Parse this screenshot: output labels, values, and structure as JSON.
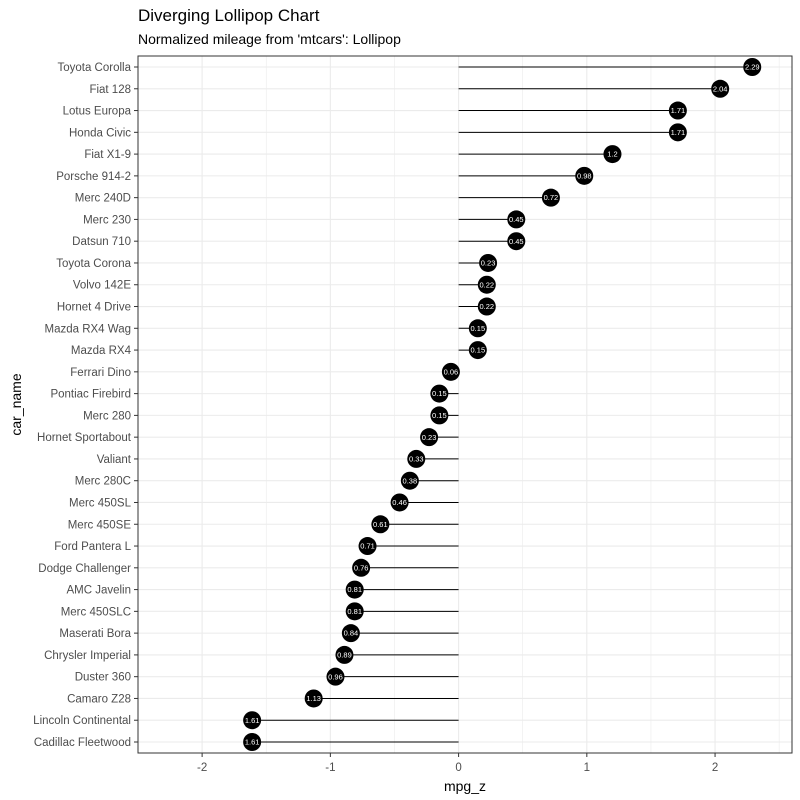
{
  "chart_data": {
    "type": "lollipop",
    "title": "Diverging Lollipop Chart",
    "subtitle": "Normalized mileage from 'mtcars': Lollipop",
    "xlabel": "mpg_z",
    "ylabel": "car_name",
    "xlim": [
      -2.5,
      2.6
    ],
    "x_ticks": [
      -2,
      -1,
      0,
      1,
      2
    ],
    "grid": true,
    "categories": [
      "Toyota Corolla",
      "Fiat 128",
      "Lotus Europa",
      "Honda Civic",
      "Fiat X1-9",
      "Porsche 914-2",
      "Merc 240D",
      "Merc 230",
      "Datsun 710",
      "Toyota Corona",
      "Volvo 142E",
      "Hornet 4 Drive",
      "Mazda RX4 Wag",
      "Mazda RX4",
      "Ferrari Dino",
      "Pontiac Firebird",
      "Merc 280",
      "Hornet Sportabout",
      "Valiant",
      "Merc 280C",
      "Merc 450SL",
      "Merc 450SE",
      "Ford Pantera L",
      "Dodge Challenger",
      "AMC Javelin",
      "Merc 450SLC",
      "Maserati Bora",
      "Chrysler Imperial",
      "Duster 360",
      "Camaro Z28",
      "Lincoln Continental",
      "Cadillac Fleetwood"
    ],
    "values": [
      2.29,
      2.04,
      1.71,
      1.71,
      1.2,
      0.98,
      0.72,
      0.45,
      0.45,
      0.23,
      0.22,
      0.22,
      0.15,
      0.15,
      -0.06,
      -0.15,
      -0.15,
      -0.23,
      -0.33,
      -0.38,
      -0.46,
      -0.61,
      -0.71,
      -0.76,
      -0.81,
      -0.81,
      -0.84,
      -0.89,
      -0.96,
      -1.13,
      -1.61,
      -1.61
    ],
    "labels": [
      "2.29",
      "2.04",
      "1.71",
      "1.71",
      "1.2",
      "0.98",
      "0.72",
      "0.45",
      "0.45",
      "0.23",
      "0.22",
      "0.22",
      "0.15",
      "0.15",
      "0.06",
      "0.15",
      "0.15",
      "0.23",
      "0.33",
      "0.38",
      "0.46",
      "0.61",
      "0.71",
      "0.76",
      "0.81",
      "0.81",
      "0.84",
      "0.89",
      "0.96",
      "1.13",
      "1.61",
      "1.61"
    ],
    "colors": {
      "marker": "#000000",
      "segment": "#000000",
      "grid": "#ebebeb",
      "border": "#333333",
      "label": "#ffffff"
    }
  }
}
